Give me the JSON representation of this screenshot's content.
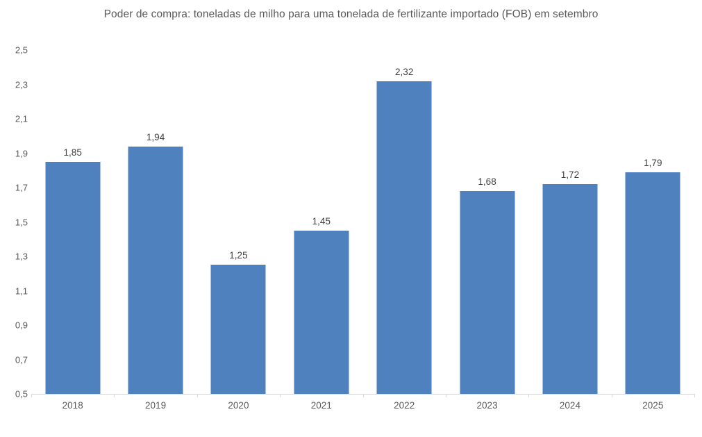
{
  "chart_data": {
    "type": "bar",
    "title": "Poder de compra: toneladas de milho para uma tonelada de fertilizante importado (FOB) em setembro",
    "categories": [
      "2018",
      "2019",
      "2020",
      "2021",
      "2022",
      "2023",
      "2024",
      "2025"
    ],
    "values": [
      1.85,
      1.94,
      1.25,
      1.45,
      2.32,
      1.68,
      1.72,
      1.79
    ],
    "data_labels": [
      "1,85",
      "1,94",
      "1,25",
      "1,45",
      "2,32",
      "1,68",
      "1,72",
      "1,79"
    ],
    "y_ticks": [
      "0,5",
      "0,7",
      "0,9",
      "1,1",
      "1,3",
      "1,5",
      "1,7",
      "1,9",
      "2,1",
      "2,3",
      "2,5"
    ],
    "ylim": [
      0.5,
      2.5
    ],
    "xlabel": "",
    "ylabel": "",
    "grid": false,
    "legend": false,
    "colors": {
      "bar": "#4E81BD",
      "axis_line": "#D9D9D9",
      "title_text": "#595959",
      "tick_label_text": "#595959",
      "data_label_text": "#404040",
      "background": "#FFFFFF"
    }
  }
}
